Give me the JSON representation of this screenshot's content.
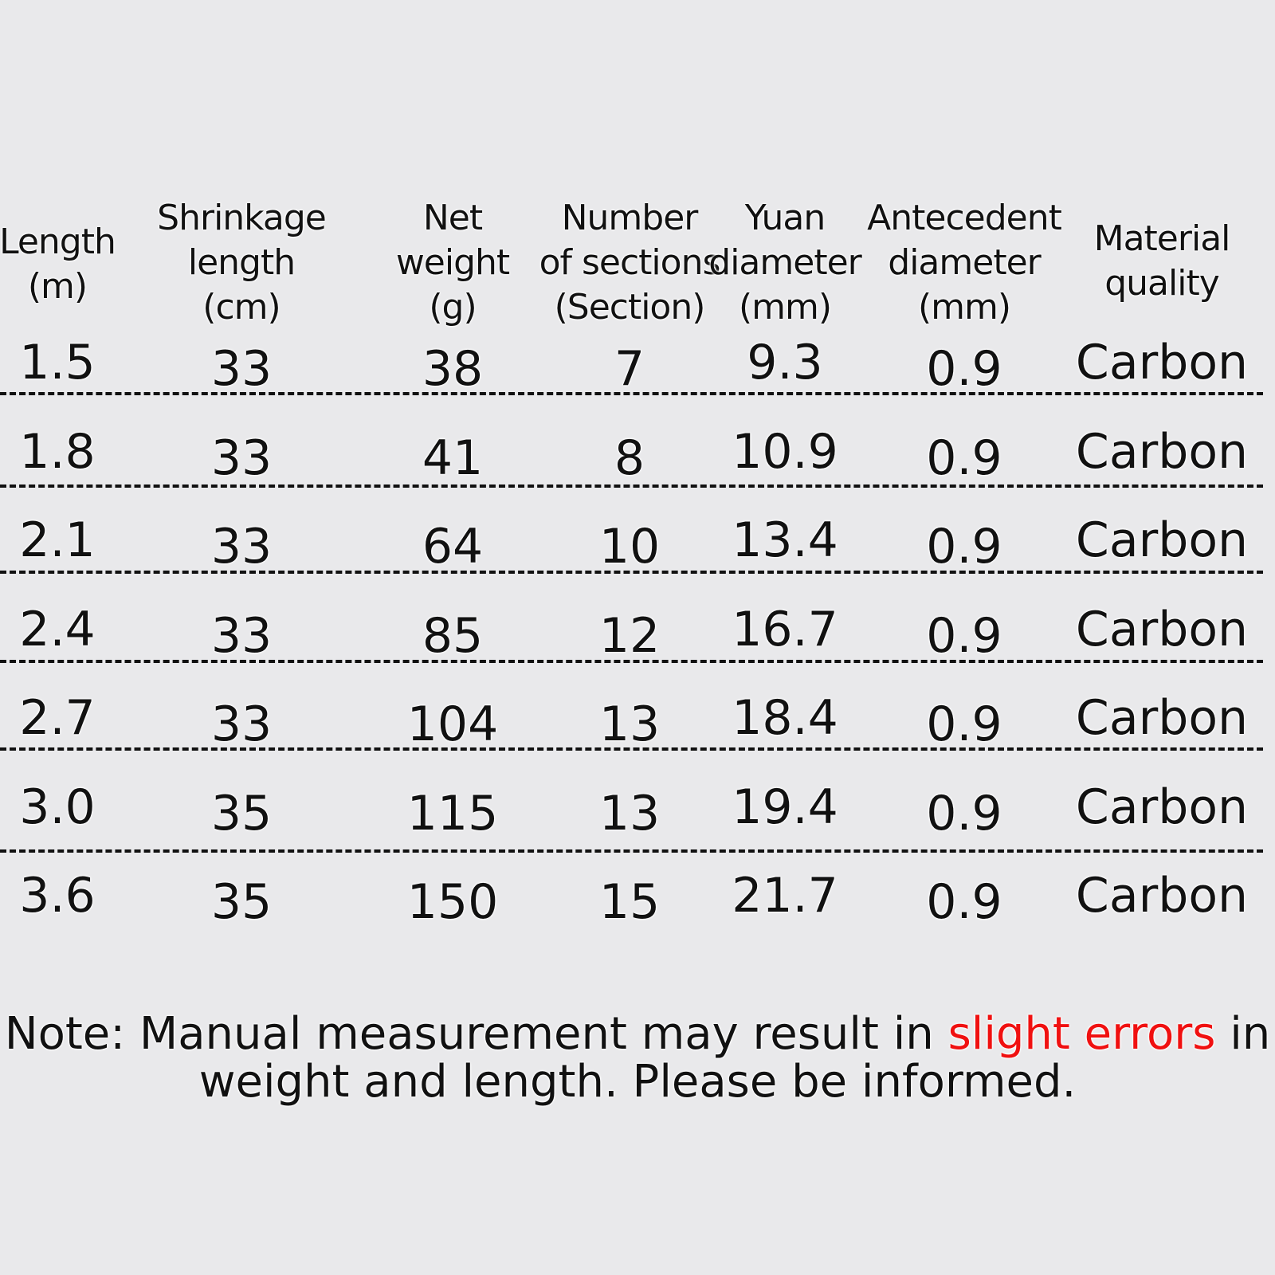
{
  "headers": [
    {
      "lines": [
        "Length",
        "(m)"
      ]
    },
    {
      "lines": [
        "Shrinkage",
        "length",
        "(cm)"
      ]
    },
    {
      "lines": [
        "Net",
        "weight",
        "(g)"
      ]
    },
    {
      "lines": [
        "Number",
        "of sections",
        "(Section)"
      ]
    },
    {
      "lines": [
        "Yuan",
        "diameter",
        "(mm)"
      ]
    },
    {
      "lines": [
        "Antecedent",
        "diameter",
        "(mm)"
      ]
    },
    {
      "lines": [
        "Material",
        "quality"
      ]
    }
  ],
  "rows": [
    [
      "1.5",
      "33",
      "38",
      "7",
      "9.3",
      "0.9",
      "Carbon"
    ],
    [
      "1.8",
      "33",
      "41",
      "8",
      "10.9",
      "0.9",
      "Carbon"
    ],
    [
      "2.1",
      "33",
      "64",
      "10",
      "13.4",
      "0.9",
      "Carbon"
    ],
    [
      "2.4",
      "33",
      "85",
      "12",
      "16.7",
      "0.9",
      "Carbon"
    ],
    [
      "2.7",
      "33",
      "104",
      "13",
      "18.4",
      "0.9",
      "Carbon"
    ],
    [
      "3.0",
      "35",
      "115",
      "13",
      "19.4",
      "0.9",
      "Carbon"
    ],
    [
      "3.6",
      "35",
      "150",
      "15",
      "21.7",
      "0.9",
      "Carbon"
    ]
  ],
  "note": {
    "part1": "Note: Manual measurement may result in ",
    "highlight": "slight errors",
    "part2": " in weight and length. Please be informed.",
    "highlight_color": "#f01010"
  }
}
